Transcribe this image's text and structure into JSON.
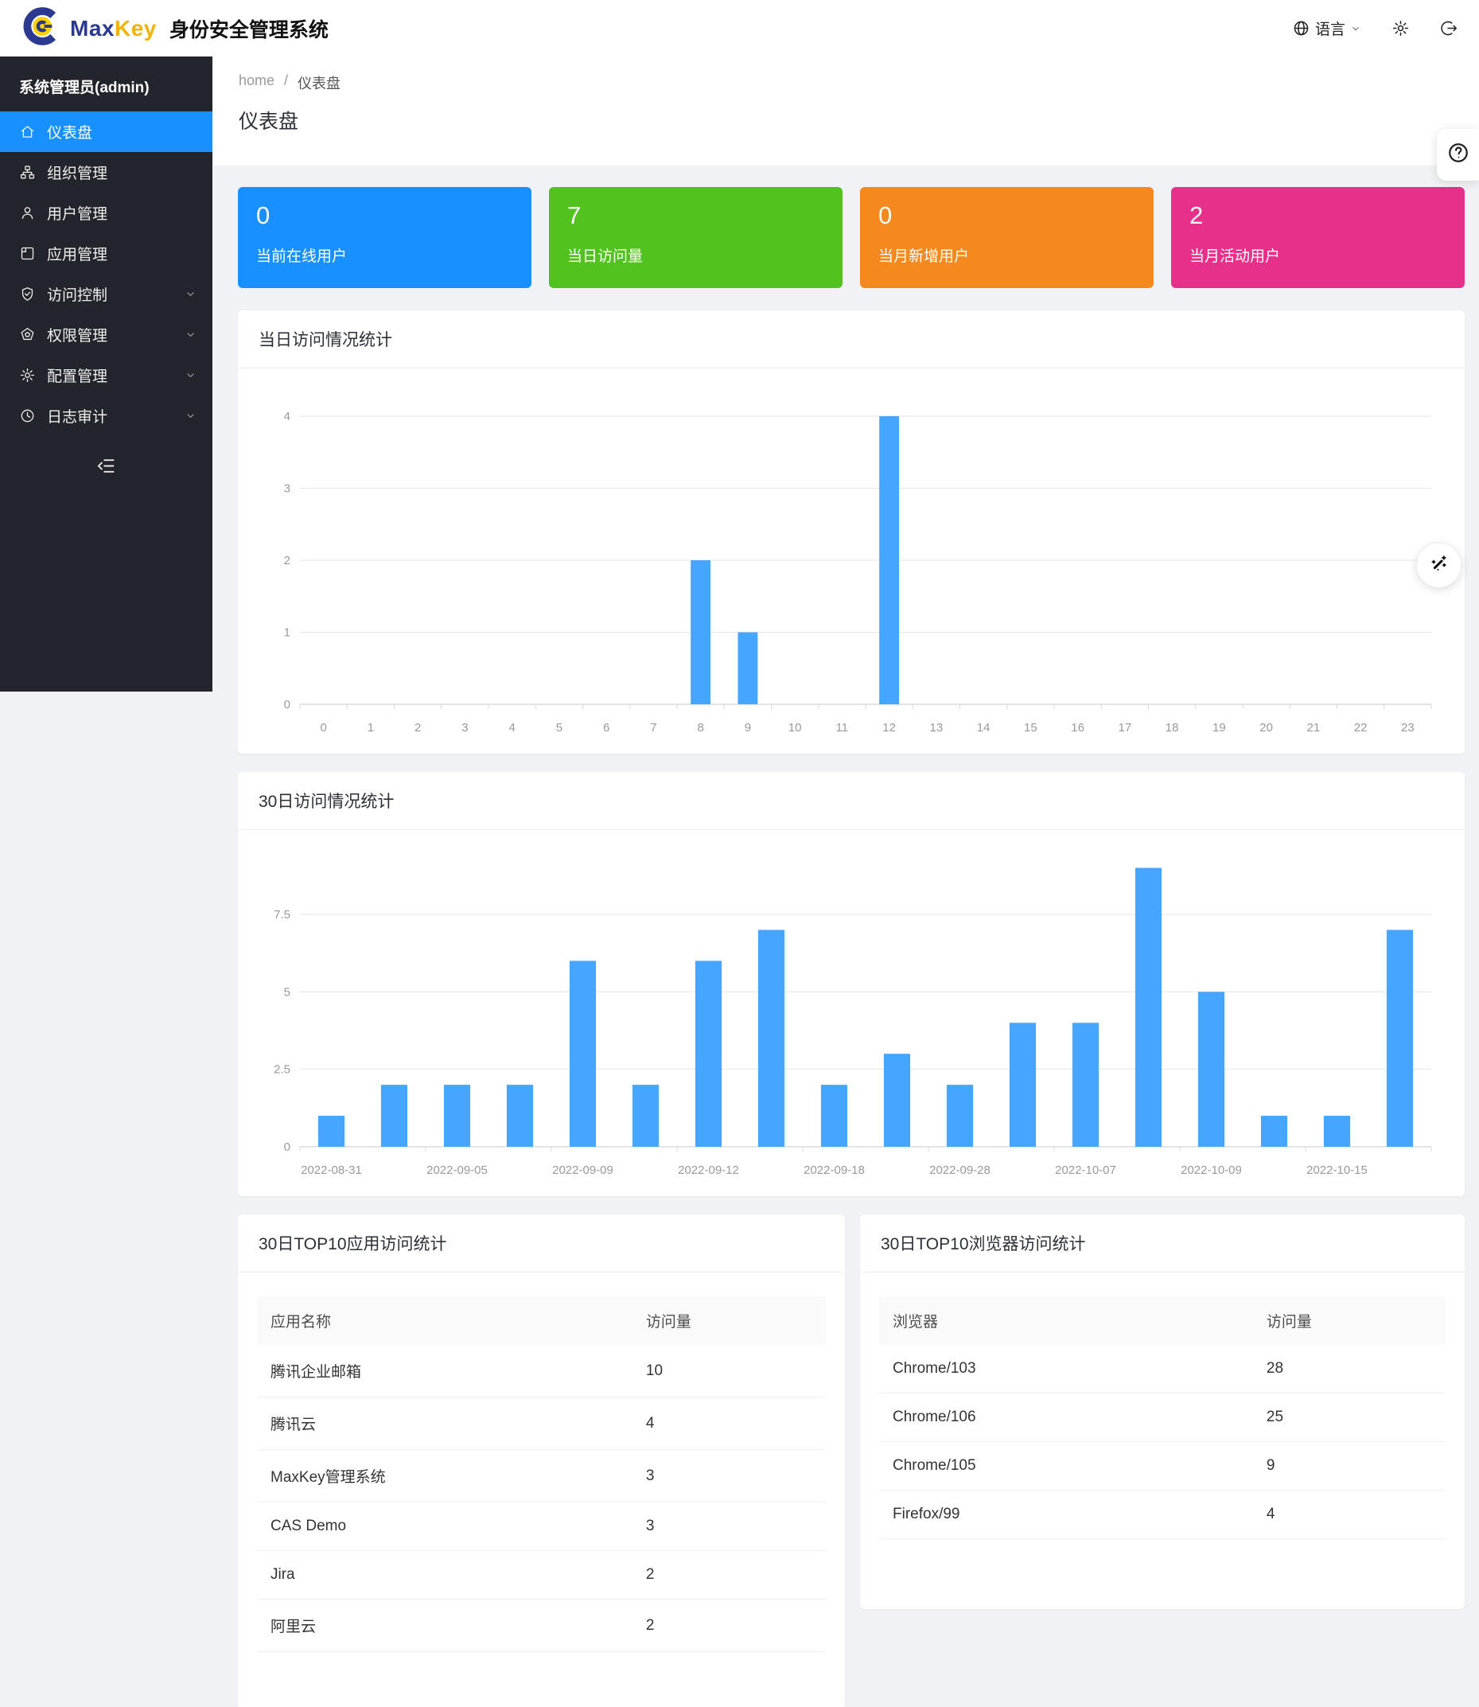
{
  "header": {
    "brand_max": "Max",
    "brand_key": "Key",
    "product_title": "身份安全管理系统",
    "language_label": "语言"
  },
  "sidebar": {
    "user_label": "系统管理员(admin)",
    "items": [
      {
        "label": "仪表盘",
        "slug": "dashboard",
        "icon": "home-icon",
        "active": true,
        "expandable": false
      },
      {
        "label": "组织管理",
        "slug": "organization",
        "icon": "org-icon",
        "active": false,
        "expandable": false
      },
      {
        "label": "用户管理",
        "slug": "users",
        "icon": "user-icon",
        "active": false,
        "expandable": false
      },
      {
        "label": "应用管理",
        "slug": "applications",
        "icon": "app-icon",
        "active": false,
        "expandable": false
      },
      {
        "label": "访问控制",
        "slug": "access-control",
        "icon": "shield-check-icon",
        "active": false,
        "expandable": true
      },
      {
        "label": "权限管理",
        "slug": "permissions",
        "icon": "pentagon-icon",
        "active": false,
        "expandable": true
      },
      {
        "label": "配置管理",
        "slug": "configuration",
        "icon": "gear-icon",
        "active": false,
        "expandable": true
      },
      {
        "label": "日志审计",
        "slug": "audit-log",
        "icon": "clock-icon",
        "active": false,
        "expandable": true
      }
    ]
  },
  "breadcrumb": {
    "home": "home",
    "separator": "/",
    "current": "仪表盘"
  },
  "page": {
    "title": "仪表盘"
  },
  "stats": [
    {
      "value": "0",
      "label": "当前在线用户",
      "color": "#1890ff",
      "slug": "online-users"
    },
    {
      "value": "7",
      "label": "当日访问量",
      "color": "#52c21e",
      "slug": "today-visits"
    },
    {
      "value": "0",
      "label": "当月新增用户",
      "color": "#f6891d",
      "slug": "month-new-users"
    },
    {
      "value": "2",
      "label": "当月活动用户",
      "color": "#e6308a",
      "slug": "month-active-users"
    }
  ],
  "chart_data": [
    {
      "type": "bar",
      "title": "当日访问情况统计",
      "categories": [
        "0",
        "1",
        "2",
        "3",
        "4",
        "5",
        "6",
        "7",
        "8",
        "9",
        "10",
        "11",
        "12",
        "13",
        "14",
        "15",
        "16",
        "17",
        "18",
        "19",
        "20",
        "21",
        "22",
        "23"
      ],
      "values": [
        0,
        0,
        0,
        0,
        0,
        0,
        0,
        0,
        2,
        1,
        0,
        0,
        4,
        0,
        0,
        0,
        0,
        0,
        0,
        0,
        0,
        0,
        0,
        0
      ],
      "xlabel": "",
      "ylabel": "",
      "ylim": [
        0,
        4
      ],
      "yticks": [
        0,
        1,
        2,
        3,
        4
      ],
      "bar_color": "#46a6ff",
      "grid": true,
      "legend": "none",
      "pad_top": 52,
      "tick_every": 1
    },
    {
      "type": "bar",
      "title": "30日访问情况统计",
      "categories": [
        "2022-08-31",
        "",
        "2022-09-05",
        "",
        "2022-09-09",
        "",
        "2022-09-12",
        "",
        "2022-09-18",
        "",
        "2022-09-28",
        "",
        "2022-10-07",
        "",
        "2022-10-09",
        "",
        "2022-10-15",
        ""
      ],
      "values": [
        1,
        2,
        2,
        2,
        6,
        2,
        6,
        7,
        2,
        3,
        2,
        4,
        4,
        9,
        5,
        1,
        1,
        7
      ],
      "xlabel": "",
      "ylabel": "",
      "ylim": [
        0,
        9.4
      ],
      "yticks": [
        0,
        2.5,
        5,
        7.5
      ],
      "bar_color": "#46a6ff",
      "grid": true,
      "legend": "none",
      "pad_top": 24,
      "tick_every": 2
    }
  ],
  "tables": [
    {
      "title": "30日TOP10应用访问统计",
      "columns": [
        "应用名称",
        "访问量"
      ],
      "rows": [
        [
          "腾讯企业邮箱",
          "10"
        ],
        [
          "腾讯云",
          "4"
        ],
        [
          "MaxKey管理系统",
          "3"
        ],
        [
          "CAS Demo",
          "3"
        ],
        [
          "Jira",
          "2"
        ],
        [
          "阿里云",
          "2"
        ]
      ]
    },
    {
      "title": "30日TOP10浏览器访问统计",
      "columns": [
        "浏览器",
        "访问量"
      ],
      "rows": [
        [
          "Chrome/103",
          "28"
        ],
        [
          "Chrome/106",
          "25"
        ],
        [
          "Chrome/105",
          "9"
        ],
        [
          "Firefox/99",
          "4"
        ]
      ]
    }
  ],
  "colors": {
    "sidebar_bg": "#22252b",
    "sidebar_active": "#1890ff",
    "content_bg": "#f0f2f5",
    "bar_color": "#46a6ff",
    "grid_line": "#e6e6e6",
    "axis_line": "#cccccc",
    "axis_text": "#999999"
  }
}
